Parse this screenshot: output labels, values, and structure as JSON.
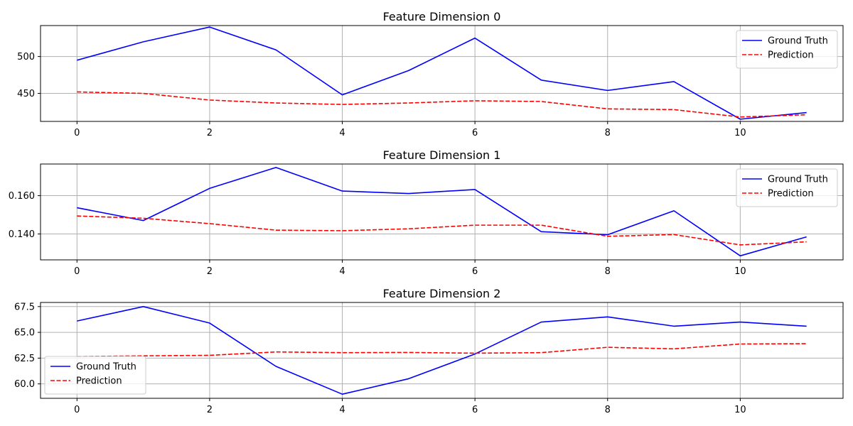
{
  "chart_data": [
    {
      "type": "line",
      "title": "Feature Dimension 0",
      "x": [
        0,
        1,
        2,
        3,
        4,
        5,
        6,
        7,
        8,
        9,
        10,
        11
      ],
      "xlim": [
        -0.55,
        11.55
      ],
      "ylim": [
        412,
        542
      ],
      "xticks": [
        0,
        2,
        4,
        6,
        8,
        10
      ],
      "yticks": [
        450,
        500
      ],
      "ytick_labels": [
        "450",
        "500"
      ],
      "grid": true,
      "legend": "top-right",
      "series": [
        {
          "name": "Ground Truth",
          "color": "#0000ff",
          "style": "solid",
          "values": [
            495,
            520,
            540,
            509,
            448,
            481,
            525,
            468,
            454,
            466,
            415,
            424
          ]
        },
        {
          "name": "Prediction",
          "color": "#ff0000",
          "style": "dashed",
          "values": [
            452,
            450,
            441,
            437,
            435,
            437,
            440,
            439,
            429,
            428,
            418,
            421
          ]
        }
      ]
    },
    {
      "type": "line",
      "title": "Feature Dimension 1",
      "x": [
        0,
        1,
        2,
        3,
        4,
        5,
        6,
        7,
        8,
        9,
        10,
        11
      ],
      "xlim": [
        -0.55,
        11.55
      ],
      "ylim": [
        0.1265,
        0.1765
      ],
      "xticks": [
        0,
        2,
        4,
        6,
        8,
        10
      ],
      "yticks": [
        0.14,
        0.16
      ],
      "ytick_labels": [
        "0.140",
        "0.160"
      ],
      "grid": true,
      "legend": "top-right",
      "series": [
        {
          "name": "Ground Truth",
          "color": "#0000ff",
          "style": "solid",
          "values": [
            0.1537,
            0.147,
            0.1638,
            0.1747,
            0.1624,
            0.1611,
            0.1632,
            0.1412,
            0.1396,
            0.1521,
            0.1286,
            0.1385
          ]
        },
        {
          "name": "Prediction",
          "color": "#ff0000",
          "style": "dashed",
          "values": [
            0.1494,
            0.1482,
            0.1454,
            0.142,
            0.1417,
            0.1427,
            0.1446,
            0.1446,
            0.1388,
            0.1397,
            0.1343,
            0.1359
          ]
        }
      ]
    },
    {
      "type": "line",
      "title": "Feature Dimension 2",
      "x": [
        0,
        1,
        2,
        3,
        4,
        5,
        6,
        7,
        8,
        9,
        10,
        11
      ],
      "xlim": [
        -0.55,
        11.55
      ],
      "ylim": [
        58.6,
        67.9
      ],
      "xticks": [
        0,
        2,
        4,
        6,
        8,
        10
      ],
      "yticks": [
        60.0,
        62.5,
        65.0,
        67.5
      ],
      "ytick_labels": [
        "60.0",
        "62.5",
        "65.0",
        "67.5"
      ],
      "grid": true,
      "legend": "bottom-left",
      "series": [
        {
          "name": "Ground Truth",
          "color": "#0000ff",
          "style": "solid",
          "values": [
            66.1,
            67.5,
            65.9,
            61.7,
            59.0,
            60.5,
            62.9,
            66.0,
            66.5,
            65.6,
            66.0,
            65.6
          ]
        },
        {
          "name": "Prediction",
          "color": "#ff0000",
          "style": "dashed",
          "values": [
            62.65,
            62.72,
            62.77,
            63.1,
            63.03,
            63.05,
            62.98,
            63.03,
            63.55,
            63.4,
            63.87,
            63.9
          ]
        }
      ]
    }
  ]
}
